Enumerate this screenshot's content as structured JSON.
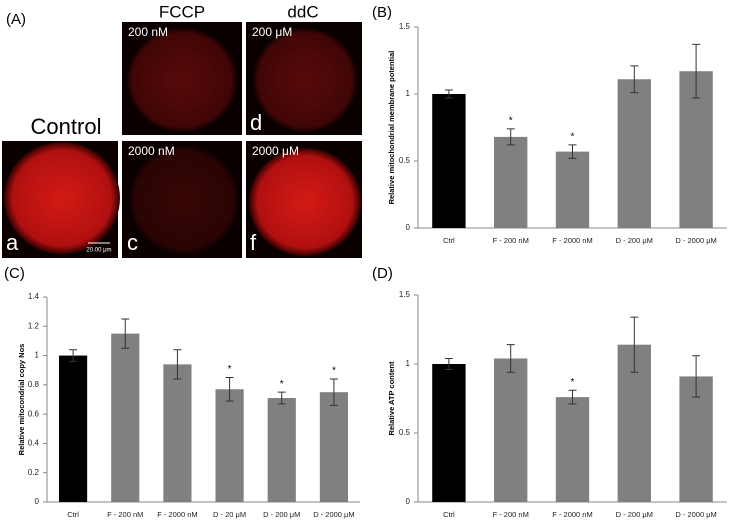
{
  "panel_a": {
    "label": "(A)",
    "columns": [
      "FCCP",
      "ddC"
    ],
    "control": "Control",
    "images": [
      {
        "letter": "a",
        "scale_bar": "20.00 μm"
      },
      {
        "text": "200 nM"
      },
      {
        "text": "2000 nM",
        "letter": "c"
      },
      {
        "text": "200 μM",
        "letter": "d"
      },
      {
        "text": "2000 μM",
        "letter": "f"
      }
    ]
  },
  "chart_data": [
    {
      "type": "bar",
      "title": "(B)",
      "y_label": "Relative mitochondrial membrane potential",
      "categories": [
        "Ctrl",
        "F - 200 nM",
        "F - 2000 nM",
        "D - 200 μM",
        "D - 2000 μM"
      ],
      "values": [
        1.0,
        0.68,
        0.57,
        1.11,
        1.17
      ],
      "errors": [
        0.03,
        0.06,
        0.05,
        0.1,
        0.2
      ],
      "significance": [
        null,
        "*",
        "*",
        null,
        null
      ],
      "colors": [
        "#000000",
        "#808080",
        "#808080",
        "#808080",
        "#808080"
      ],
      "ylim": [
        0,
        1.5
      ],
      "yticks": [
        0,
        0.5,
        1,
        1.5
      ]
    },
    {
      "type": "bar",
      "title": "(C)",
      "y_label": "Relative mitocondrial copy Nos",
      "categories": [
        "Ctrl",
        "F - 200 nM",
        "F - 2000 nM",
        "D - 20 μM",
        "D - 200 μM",
        "D - 2000 μM"
      ],
      "values": [
        1.0,
        1.15,
        0.94,
        0.77,
        0.71,
        0.75
      ],
      "errors": [
        0.04,
        0.1,
        0.1,
        0.08,
        0.04,
        0.09
      ],
      "significance": [
        null,
        null,
        null,
        "*",
        "*",
        "*"
      ],
      "colors": [
        "#000000",
        "#808080",
        "#808080",
        "#808080",
        "#808080",
        "#808080"
      ],
      "ylim": [
        0,
        1.4
      ],
      "yticks": [
        0,
        0.2,
        0.4,
        0.6,
        0.8,
        1,
        1.2,
        1.4
      ]
    },
    {
      "type": "bar",
      "title": "(D)",
      "y_label": "Relative ATP content",
      "categories": [
        "Ctrl",
        "F - 200 nM",
        "F - 2000 nM",
        "D - 200 μM",
        "D - 2000 μM"
      ],
      "values": [
        1.0,
        1.04,
        0.76,
        1.14,
        0.91
      ],
      "errors": [
        0.04,
        0.1,
        0.05,
        0.2,
        0.15
      ],
      "significance": [
        null,
        null,
        "*",
        null,
        null
      ],
      "colors": [
        "#000000",
        "#808080",
        "#808080",
        "#808080",
        "#808080"
      ],
      "ylim": [
        0,
        1.5
      ],
      "yticks": [
        0,
        0.5,
        1,
        1.5
      ]
    }
  ]
}
